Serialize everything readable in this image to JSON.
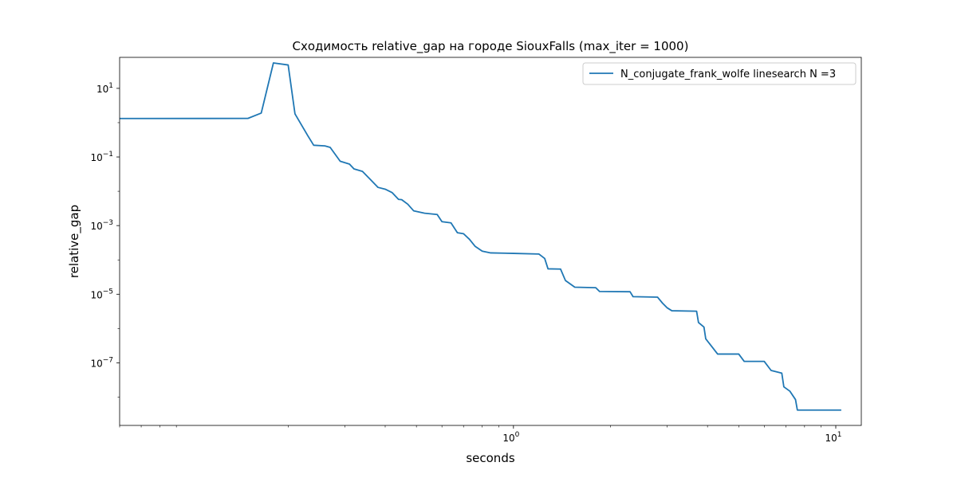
{
  "chart_data": {
    "type": "line",
    "title": "Сходимость relative_gap на городе SiouxFalls  (max_iter = 1000)",
    "xlabel": "seconds",
    "ylabel": "relative_gap",
    "xscale": "log",
    "yscale": "log",
    "xlim": [
      0.06,
      12
    ],
    "ylim": [
      1.5e-09,
      80.0
    ],
    "grid": false,
    "legend_position": "top-right",
    "colors": {
      "series": "#1f77b4",
      "axes": "#000000",
      "background": "#ffffff"
    },
    "x_ticks": [
      {
        "value": 1,
        "label": "10",
        "exp": "0"
      },
      {
        "value": 10,
        "label": "10",
        "exp": "1"
      }
    ],
    "y_ticks": [
      {
        "value": 10,
        "label": "10",
        "exp": "1"
      },
      {
        "value": 0.1,
        "label": "10",
        "exp": "−1"
      },
      {
        "value": 0.001,
        "label": "10",
        "exp": "−3"
      },
      {
        "value": 1e-05,
        "label": "10",
        "exp": "−5"
      },
      {
        "value": 1e-07,
        "label": "10",
        "exp": "−7"
      }
    ],
    "series": [
      {
        "name": "N_conjugate_frank_wolfe linesearch N =3",
        "points": [
          [
            0.06,
            1.32
          ],
          [
            0.15,
            1.33
          ],
          [
            0.165,
            1.9
          ],
          [
            0.18,
            55
          ],
          [
            0.2,
            48
          ],
          [
            0.21,
            1.8
          ],
          [
            0.23,
            0.42
          ],
          [
            0.24,
            0.22
          ],
          [
            0.26,
            0.21
          ],
          [
            0.27,
            0.19
          ],
          [
            0.29,
            0.075
          ],
          [
            0.31,
            0.062
          ],
          [
            0.32,
            0.045
          ],
          [
            0.34,
            0.038
          ],
          [
            0.36,
            0.022
          ],
          [
            0.38,
            0.013
          ],
          [
            0.4,
            0.0115
          ],
          [
            0.42,
            0.0092
          ],
          [
            0.44,
            0.0058
          ],
          [
            0.45,
            0.0057
          ],
          [
            0.47,
            0.0042
          ],
          [
            0.49,
            0.0027
          ],
          [
            0.53,
            0.0023
          ],
          [
            0.58,
            0.0021
          ],
          [
            0.6,
            0.0013
          ],
          [
            0.64,
            0.0012
          ],
          [
            0.67,
            0.00062
          ],
          [
            0.7,
            0.00058
          ],
          [
            0.73,
            0.0004
          ],
          [
            0.76,
            0.00025
          ],
          [
            0.8,
            0.00018
          ],
          [
            0.85,
            0.00016
          ],
          [
            1.0,
            0.000155
          ],
          [
            1.2,
            0.000148
          ],
          [
            1.25,
            0.00011
          ],
          [
            1.28,
            5.5e-05
          ],
          [
            1.4,
            5.4e-05
          ],
          [
            1.45,
            2.5e-05
          ],
          [
            1.55,
            1.6e-05
          ],
          [
            1.8,
            1.55e-05
          ],
          [
            1.85,
            1.2e-05
          ],
          [
            2.3,
            1.18e-05
          ],
          [
            2.35,
            8.5e-06
          ],
          [
            2.8,
            8.2e-06
          ],
          [
            2.9,
            5.5e-06
          ],
          [
            3.0,
            4e-06
          ],
          [
            3.1,
            3.3e-06
          ],
          [
            3.7,
            3.2e-06
          ],
          [
            3.75,
            1.5e-06
          ],
          [
            3.9,
            1.1e-06
          ],
          [
            3.95,
            5e-07
          ],
          [
            4.1,
            3.2e-07
          ],
          [
            4.3,
            1.8e-07
          ],
          [
            5.0,
            1.8e-07
          ],
          [
            5.2,
            1.1e-07
          ],
          [
            6.0,
            1.1e-07
          ],
          [
            6.3,
            6e-08
          ],
          [
            6.8,
            5e-08
          ],
          [
            6.9,
            2e-08
          ],
          [
            7.2,
            1.5e-08
          ],
          [
            7.5,
            8.5e-09
          ],
          [
            7.6,
            4.2e-09
          ],
          [
            10.4,
            4.2e-09
          ]
        ]
      }
    ]
  }
}
